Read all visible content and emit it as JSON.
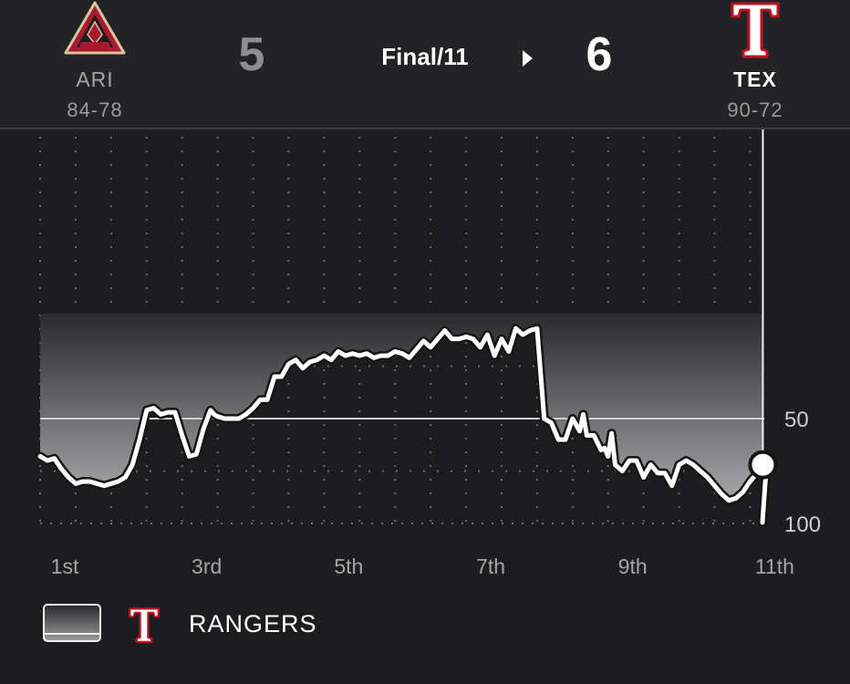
{
  "game": {
    "status": "Final/11",
    "away": {
      "abbr": "ARI",
      "record": "84-78",
      "score": "5",
      "logo": "arizona-diamondbacks-a-logo"
    },
    "home": {
      "abbr": "TEX",
      "record": "90-72",
      "score": "6",
      "logo": "texas-rangers-t-logo"
    }
  },
  "legend": {
    "label": "RANGERS",
    "swatch": "gradient-swatch-icon",
    "logo": "texas-rangers-t-logo"
  },
  "colors": {
    "background": "#1d1d1f",
    "away_line": "#d3c4a1",
    "home_line": "#ffffff",
    "ari_red": "#a71930",
    "ari_sand": "#d8c49b",
    "tex_red": "#c0111f",
    "tex_blue": "#003278"
  },
  "chart_data": {
    "type": "line",
    "ylim": [
      0,
      100
    ],
    "y_ticks": [
      "50",
      "100"
    ],
    "y_tick_values": [
      50,
      100
    ],
    "x_ticks": [
      "1st",
      "3rd",
      "5th",
      "7th",
      "9th",
      "11th"
    ],
    "x_tick_values": [
      1,
      3,
      5,
      7,
      9,
      11
    ],
    "xlim": [
      1,
      11.2
    ],
    "midline": 50,
    "current_marker": {
      "x": 11.18,
      "y": 72
    },
    "series": [
      {
        "x": [
          1.0,
          1.1,
          1.2,
          1.3,
          1.4,
          1.5,
          1.6,
          1.7,
          1.8,
          1.9,
          2.0,
          2.1,
          2.2,
          2.3,
          2.4,
          2.5,
          2.6,
          2.7,
          2.8,
          2.9,
          3.0,
          3.1,
          3.2,
          3.3,
          3.4,
          3.45,
          3.5,
          3.6,
          3.7,
          3.8,
          3.9,
          4.0,
          4.1,
          4.2,
          4.3,
          4.4,
          4.5,
          4.6,
          4.7,
          4.8,
          4.9,
          5.0,
          5.1,
          5.2,
          5.3,
          5.4,
          5.5,
          5.6,
          5.7,
          5.8,
          5.9,
          6.0,
          6.1,
          6.2,
          6.3,
          6.4,
          6.5,
          6.6,
          6.7,
          6.8,
          6.9,
          7.0,
          7.1,
          7.2,
          7.3,
          7.4,
          7.5,
          7.6,
          7.7,
          7.8,
          7.9,
          8.0,
          8.1,
          8.2,
          8.3,
          8.4,
          8.5,
          8.6,
          8.65,
          8.7,
          8.8,
          8.9,
          8.95,
          9.0,
          9.05,
          9.1,
          9.2,
          9.3,
          9.4,
          9.5,
          9.6,
          9.7,
          9.8,
          9.9,
          10.0,
          10.1,
          10.2,
          10.3,
          10.4,
          10.5,
          10.6,
          10.7,
          10.8,
          10.9,
          11.0,
          11.1,
          11.18
        ],
        "y": [
          68,
          70,
          69,
          74,
          78,
          81,
          80,
          80,
          81,
          82,
          81,
          80,
          78,
          72,
          60,
          46,
          45,
          48,
          47,
          47,
          58,
          68,
          67,
          55,
          46,
          48,
          49,
          50,
          50,
          50,
          48,
          45,
          41,
          41,
          30,
          30,
          24,
          22,
          26,
          23,
          22,
          20,
          22,
          18,
          20,
          19,
          20,
          19,
          21,
          20,
          20,
          18,
          19,
          21,
          17,
          13,
          16,
          12,
          8,
          12,
          12,
          11,
          12,
          16,
          10,
          20,
          12,
          18,
          7,
          10,
          8,
          7,
          50,
          52,
          60,
          60,
          50,
          56,
          48,
          58,
          58,
          65,
          64,
          68,
          57,
          72,
          75,
          70,
          70,
          78,
          72,
          76,
          76,
          82,
          72,
          70,
          72,
          75,
          78,
          82,
          86,
          89,
          88,
          85,
          80,
          76,
          72
        ]
      }
    ]
  }
}
